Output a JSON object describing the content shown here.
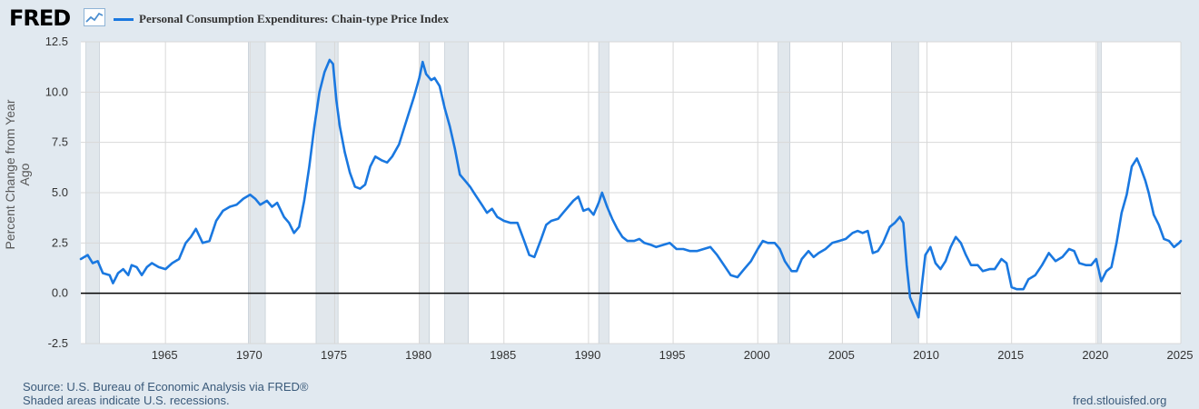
{
  "header": {
    "logo_text": "FRED",
    "logo_icon": "line-chart-icon",
    "legend_label": "Personal Consumption Expenditures: Chain-type Price Index"
  },
  "footer": {
    "source": "Source: U.S. Bureau of Economic Analysis via FRED®",
    "recession_note": "Shaded areas indicate U.S. recessions.",
    "site": "fred.stlouisfed.org"
  },
  "colors": {
    "background": "#e1e9f0",
    "plot_background": "#ffffff",
    "series": "#1a78e0",
    "recession": "#e1e7ec",
    "zero_line": "#000000"
  },
  "chart_data": {
    "type": "line",
    "title": "",
    "xlabel": "",
    "ylabel": "Percent Change from Year Ago",
    "xlim": [
      1960.0,
      2025.0
    ],
    "ylim": [
      -2.5,
      12.5
    ],
    "x_ticks": [
      "1965",
      "1970",
      "1975",
      "1980",
      "1985",
      "1990",
      "1995",
      "2000",
      "2005",
      "2010",
      "2015",
      "2020",
      "2025"
    ],
    "y_ticks": [
      "-2.5",
      "0.0",
      "2.5",
      "5.0",
      "7.5",
      "10.0",
      "12.5"
    ],
    "grid": true,
    "recessions": [
      [
        1960.3,
        1961.1
      ],
      [
        1969.9,
        1970.9
      ],
      [
        1973.9,
        1975.2
      ],
      [
        1980.0,
        1980.6
      ],
      [
        1981.5,
        1982.9
      ],
      [
        1990.6,
        1991.2
      ],
      [
        2001.2,
        2001.9
      ],
      [
        2007.9,
        2009.5
      ],
      [
        2020.1,
        2020.3
      ]
    ],
    "series": [
      {
        "name": "Personal Consumption Expenditures: Chain-type Price Index",
        "points": [
          [
            1960.0,
            1.7
          ],
          [
            1960.4,
            1.9
          ],
          [
            1960.7,
            1.5
          ],
          [
            1961.0,
            1.6
          ],
          [
            1961.3,
            1.0
          ],
          [
            1961.7,
            0.9
          ],
          [
            1961.9,
            0.5
          ],
          [
            1962.2,
            1.0
          ],
          [
            1962.5,
            1.2
          ],
          [
            1962.8,
            0.9
          ],
          [
            1963.0,
            1.4
          ],
          [
            1963.3,
            1.3
          ],
          [
            1963.6,
            0.9
          ],
          [
            1963.9,
            1.3
          ],
          [
            1964.2,
            1.5
          ],
          [
            1964.6,
            1.3
          ],
          [
            1965.0,
            1.2
          ],
          [
            1965.4,
            1.5
          ],
          [
            1965.8,
            1.7
          ],
          [
            1966.2,
            2.5
          ],
          [
            1966.5,
            2.8
          ],
          [
            1966.8,
            3.2
          ],
          [
            1967.2,
            2.5
          ],
          [
            1967.6,
            2.6
          ],
          [
            1968.0,
            3.6
          ],
          [
            1968.4,
            4.1
          ],
          [
            1968.8,
            4.3
          ],
          [
            1969.2,
            4.4
          ],
          [
            1969.6,
            4.7
          ],
          [
            1970.0,
            4.9
          ],
          [
            1970.3,
            4.7
          ],
          [
            1970.6,
            4.4
          ],
          [
            1971.0,
            4.6
          ],
          [
            1971.3,
            4.3
          ],
          [
            1971.6,
            4.5
          ],
          [
            1972.0,
            3.8
          ],
          [
            1972.3,
            3.5
          ],
          [
            1972.6,
            3.0
          ],
          [
            1972.9,
            3.3
          ],
          [
            1973.2,
            4.6
          ],
          [
            1973.5,
            6.3
          ],
          [
            1973.8,
            8.3
          ],
          [
            1974.1,
            10.0
          ],
          [
            1974.4,
            11.0
          ],
          [
            1974.7,
            11.6
          ],
          [
            1974.9,
            11.4
          ],
          [
            1975.1,
            9.6
          ],
          [
            1975.3,
            8.3
          ],
          [
            1975.6,
            7.0
          ],
          [
            1975.9,
            6.0
          ],
          [
            1976.2,
            5.3
          ],
          [
            1976.5,
            5.2
          ],
          [
            1976.8,
            5.4
          ],
          [
            1977.1,
            6.3
          ],
          [
            1977.4,
            6.8
          ],
          [
            1977.8,
            6.6
          ],
          [
            1978.1,
            6.5
          ],
          [
            1978.4,
            6.8
          ],
          [
            1978.8,
            7.4
          ],
          [
            1979.1,
            8.2
          ],
          [
            1979.4,
            9.0
          ],
          [
            1979.7,
            9.8
          ],
          [
            1980.0,
            10.7
          ],
          [
            1980.2,
            11.5
          ],
          [
            1980.4,
            10.9
          ],
          [
            1980.7,
            10.6
          ],
          [
            1980.9,
            10.7
          ],
          [
            1981.2,
            10.3
          ],
          [
            1981.5,
            9.2
          ],
          [
            1981.8,
            8.3
          ],
          [
            1982.1,
            7.2
          ],
          [
            1982.4,
            5.9
          ],
          [
            1982.7,
            5.6
          ],
          [
            1983.0,
            5.3
          ],
          [
            1983.3,
            4.9
          ],
          [
            1983.7,
            4.4
          ],
          [
            1984.0,
            4.0
          ],
          [
            1984.3,
            4.2
          ],
          [
            1984.6,
            3.8
          ],
          [
            1985.0,
            3.6
          ],
          [
            1985.4,
            3.5
          ],
          [
            1985.8,
            3.5
          ],
          [
            1986.2,
            2.6
          ],
          [
            1986.5,
            1.9
          ],
          [
            1986.8,
            1.8
          ],
          [
            1987.2,
            2.7
          ],
          [
            1987.5,
            3.4
          ],
          [
            1987.8,
            3.6
          ],
          [
            1988.2,
            3.7
          ],
          [
            1988.5,
            4.0
          ],
          [
            1988.8,
            4.3
          ],
          [
            1989.1,
            4.6
          ],
          [
            1989.4,
            4.8
          ],
          [
            1989.7,
            4.1
          ],
          [
            1990.0,
            4.2
          ],
          [
            1990.3,
            3.9
          ],
          [
            1990.6,
            4.5
          ],
          [
            1990.8,
            5.0
          ],
          [
            1991.1,
            4.3
          ],
          [
            1991.4,
            3.7
          ],
          [
            1991.7,
            3.2
          ],
          [
            1992.0,
            2.8
          ],
          [
            1992.3,
            2.6
          ],
          [
            1992.7,
            2.6
          ],
          [
            1993.0,
            2.7
          ],
          [
            1993.3,
            2.5
          ],
          [
            1993.7,
            2.4
          ],
          [
            1994.0,
            2.3
          ],
          [
            1994.4,
            2.4
          ],
          [
            1994.8,
            2.5
          ],
          [
            1995.2,
            2.2
          ],
          [
            1995.6,
            2.2
          ],
          [
            1996.0,
            2.1
          ],
          [
            1996.4,
            2.1
          ],
          [
            1996.8,
            2.2
          ],
          [
            1997.2,
            2.3
          ],
          [
            1997.6,
            1.9
          ],
          [
            1998.0,
            1.4
          ],
          [
            1998.4,
            0.9
          ],
          [
            1998.8,
            0.8
          ],
          [
            1999.2,
            1.2
          ],
          [
            1999.6,
            1.6
          ],
          [
            2000.0,
            2.2
          ],
          [
            2000.3,
            2.6
          ],
          [
            2000.6,
            2.5
          ],
          [
            2001.0,
            2.5
          ],
          [
            2001.3,
            2.2
          ],
          [
            2001.6,
            1.6
          ],
          [
            2002.0,
            1.1
          ],
          [
            2002.3,
            1.1
          ],
          [
            2002.6,
            1.7
          ],
          [
            2003.0,
            2.1
          ],
          [
            2003.3,
            1.8
          ],
          [
            2003.6,
            2.0
          ],
          [
            2004.0,
            2.2
          ],
          [
            2004.4,
            2.5
          ],
          [
            2004.8,
            2.6
          ],
          [
            2005.2,
            2.7
          ],
          [
            2005.6,
            3.0
          ],
          [
            2005.9,
            3.1
          ],
          [
            2006.2,
            3.0
          ],
          [
            2006.5,
            3.1
          ],
          [
            2006.8,
            2.0
          ],
          [
            2007.1,
            2.1
          ],
          [
            2007.4,
            2.5
          ],
          [
            2007.8,
            3.3
          ],
          [
            2008.1,
            3.5
          ],
          [
            2008.4,
            3.8
          ],
          [
            2008.6,
            3.5
          ],
          [
            2008.8,
            1.4
          ],
          [
            2009.0,
            -0.2
          ],
          [
            2009.3,
            -0.8
          ],
          [
            2009.5,
            -1.2
          ],
          [
            2009.7,
            0.4
          ],
          [
            2009.9,
            1.9
          ],
          [
            2010.2,
            2.3
          ],
          [
            2010.5,
            1.5
          ],
          [
            2010.8,
            1.2
          ],
          [
            2011.1,
            1.6
          ],
          [
            2011.4,
            2.3
          ],
          [
            2011.7,
            2.8
          ],
          [
            2012.0,
            2.5
          ],
          [
            2012.3,
            1.9
          ],
          [
            2012.6,
            1.4
          ],
          [
            2013.0,
            1.4
          ],
          [
            2013.3,
            1.1
          ],
          [
            2013.7,
            1.2
          ],
          [
            2014.0,
            1.2
          ],
          [
            2014.4,
            1.7
          ],
          [
            2014.7,
            1.5
          ],
          [
            2015.0,
            0.3
          ],
          [
            2015.3,
            0.2
          ],
          [
            2015.7,
            0.2
          ],
          [
            2016.0,
            0.7
          ],
          [
            2016.4,
            0.9
          ],
          [
            2016.8,
            1.4
          ],
          [
            2017.2,
            2.0
          ],
          [
            2017.6,
            1.6
          ],
          [
            2018.0,
            1.8
          ],
          [
            2018.4,
            2.2
          ],
          [
            2018.7,
            2.1
          ],
          [
            2019.0,
            1.5
          ],
          [
            2019.4,
            1.4
          ],
          [
            2019.7,
            1.4
          ],
          [
            2020.0,
            1.7
          ],
          [
            2020.3,
            0.6
          ],
          [
            2020.6,
            1.1
          ],
          [
            2020.9,
            1.3
          ],
          [
            2021.2,
            2.5
          ],
          [
            2021.5,
            4.0
          ],
          [
            2021.8,
            4.9
          ],
          [
            2022.1,
            6.3
          ],
          [
            2022.4,
            6.7
          ],
          [
            2022.6,
            6.3
          ],
          [
            2022.9,
            5.6
          ],
          [
            2023.1,
            5.0
          ],
          [
            2023.4,
            3.9
          ],
          [
            2023.7,
            3.4
          ],
          [
            2024.0,
            2.7
          ],
          [
            2024.3,
            2.6
          ],
          [
            2024.6,
            2.3
          ],
          [
            2024.9,
            2.5
          ],
          [
            2025.0,
            2.6
          ]
        ]
      }
    ]
  }
}
